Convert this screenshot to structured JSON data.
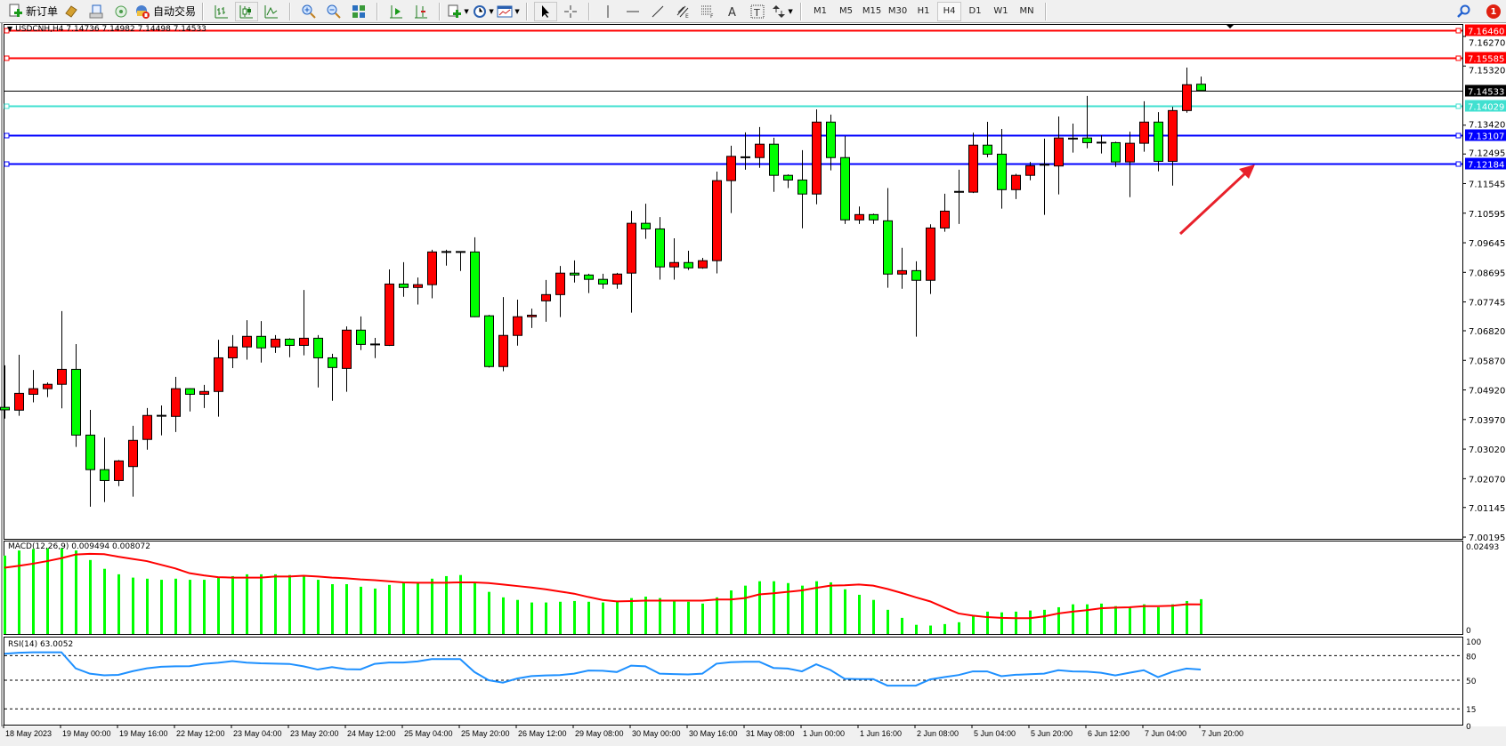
{
  "toolbar": {
    "new_order_label": "新订单",
    "auto_trading_label": "自动交易",
    "timeframes": [
      "M1",
      "M5",
      "M15",
      "M30",
      "H1",
      "H4",
      "D1",
      "W1",
      "MN"
    ],
    "selected_timeframe": "H4",
    "notification_count": "1"
  },
  "legend": {
    "symbol": "USDCNH,H4",
    "open": "7.14736",
    "high": "7.14982",
    "low": "7.14498",
    "close": "7.14533"
  },
  "colors": {
    "bull": "#ff0000",
    "bear": "#00ff00",
    "macd_hist": "#00ff00",
    "macd_signal": "#ff0000",
    "rsi": "#1e90ff",
    "hline_red": "#ff0000",
    "hline_cyan": "#40e0d0",
    "hline_blue": "#0000ff",
    "arrow": "#e8202a"
  },
  "chart_data": [
    {
      "type": "candlestick",
      "symbol": "USDCNH",
      "timeframe": "H4",
      "ylim": [
        7.00139,
        7.16669
      ],
      "price_ticks": [
        "7.16270",
        "7.15320",
        "7.13420",
        "7.12495",
        "7.11545",
        "7.10595",
        "7.09645",
        "7.08695",
        "7.07745",
        "7.06820",
        "7.05870",
        "7.04920",
        "7.03970",
        "7.03020",
        "7.02070",
        "7.01145",
        "7.00195"
      ],
      "time_labels": [
        "18 May 2023",
        "19 May 00:00",
        "19 May 16:00",
        "22 May 12:00",
        "23 May 04:00",
        "23 May 20:00",
        "24 May 12:00",
        "25 May 04:00",
        "25 May 20:00",
        "26 May 12:00",
        "29 May 08:00",
        "30 May 00:00",
        "30 May 16:00",
        "31 May 08:00",
        "1 Jun 00:00",
        "1 Jun 16:00",
        "2 Jun 08:00",
        "5 Jun 04:00",
        "5 Jun 20:00",
        "6 Jun 12:00",
        "7 Jun 04:00",
        "7 Jun 20:00"
      ],
      "ohlc": [
        [
          7.0436,
          7.0571,
          7.04,
          7.0428
        ],
        [
          7.0427,
          7.0605,
          7.0409,
          7.0481
        ],
        [
          7.0478,
          7.0556,
          7.0452,
          7.0496
        ],
        [
          7.0496,
          7.0516,
          7.0469,
          7.051
        ],
        [
          7.051,
          7.0745,
          7.0433,
          7.0558
        ],
        [
          7.0558,
          7.0639,
          7.0309,
          7.0347
        ],
        [
          7.0347,
          7.0428,
          7.0117,
          7.0236
        ],
        [
          7.0236,
          7.0339,
          7.0132,
          7.0201
        ],
        [
          7.0201,
          7.0267,
          7.0183,
          7.0264
        ],
        [
          7.0246,
          7.0377,
          7.0149,
          7.033
        ],
        [
          7.0333,
          7.0434,
          7.03,
          7.041
        ],
        [
          7.0408,
          7.0442,
          7.0346,
          7.0409
        ],
        [
          7.0407,
          7.0534,
          7.0357,
          7.0496
        ],
        [
          7.0496,
          7.0497,
          7.0423,
          7.0478
        ],
        [
          7.0478,
          7.0508,
          7.0434,
          7.0487
        ],
        [
          7.0487,
          7.0653,
          7.0406,
          7.0595
        ],
        [
          7.0595,
          7.0668,
          7.0562,
          7.063
        ],
        [
          7.063,
          7.0716,
          7.0589,
          7.0664
        ],
        [
          7.0664,
          7.0713,
          7.058,
          7.0627
        ],
        [
          7.063,
          7.0668,
          7.0611,
          7.0655
        ],
        [
          7.0655,
          7.0658,
          7.0597,
          7.0635
        ],
        [
          7.0635,
          7.0813,
          7.0603,
          7.0658
        ],
        [
          7.0658,
          7.0668,
          7.05,
          7.0595
        ],
        [
          7.0595,
          7.0608,
          7.0457,
          7.0564
        ],
        [
          7.0561,
          7.0696,
          7.0486,
          7.0684
        ],
        [
          7.0684,
          7.0728,
          7.062,
          7.0638
        ],
        [
          7.0638,
          7.0659,
          7.0594,
          7.0638
        ],
        [
          7.0635,
          7.0879,
          7.0633,
          7.0832
        ],
        [
          7.0832,
          7.0902,
          7.0791,
          7.0821
        ],
        [
          7.0821,
          7.0853,
          7.0766,
          7.083
        ],
        [
          7.083,
          7.0942,
          7.0786,
          7.0935
        ],
        [
          7.0935,
          7.0942,
          7.0891,
          7.0935
        ],
        [
          7.0935,
          7.0935,
          7.0874,
          7.0934
        ],
        [
          7.0935,
          7.0982,
          7.0726,
          7.0727
        ],
        [
          7.073,
          7.0733,
          7.0564,
          7.0567
        ],
        [
          7.0567,
          7.079,
          7.0552,
          7.0667
        ],
        [
          7.0667,
          7.0782,
          7.0634,
          7.0727
        ],
        [
          7.0727,
          7.0753,
          7.0691,
          7.0732
        ],
        [
          7.0778,
          7.0845,
          7.0711,
          7.0798
        ],
        [
          7.0798,
          7.089,
          7.0726,
          7.0867
        ],
        [
          7.0867,
          7.0908,
          7.0837,
          7.0861
        ],
        [
          7.0861,
          7.0865,
          7.0803,
          7.0847
        ],
        [
          7.0847,
          7.0865,
          7.0817,
          7.0832
        ],
        [
          7.0832,
          7.0868,
          7.0817,
          7.0864
        ],
        [
          7.0867,
          7.1067,
          7.074,
          7.1027
        ],
        [
          7.1027,
          7.109,
          7.0977,
          7.1009
        ],
        [
          7.1009,
          7.1047,
          7.0846,
          7.0887
        ],
        [
          7.0887,
          7.0979,
          7.0846,
          7.0901
        ],
        [
          7.0901,
          7.0939,
          7.0877,
          7.0884
        ],
        [
          7.0884,
          7.0916,
          7.0881,
          7.0907
        ],
        [
          7.0907,
          7.1193,
          7.0866,
          7.1164
        ],
        [
          7.1164,
          7.1276,
          7.106,
          7.1242
        ],
        [
          7.1239,
          7.1319,
          7.1199,
          7.1239
        ],
        [
          7.1238,
          7.1336,
          7.1205,
          7.1281
        ],
        [
          7.1281,
          7.1302,
          7.1128,
          7.1181
        ],
        [
          7.1181,
          7.1184,
          7.114,
          7.1166
        ],
        [
          7.1166,
          7.1262,
          7.1011,
          7.1121
        ],
        [
          7.1121,
          7.1393,
          7.1088,
          7.1352
        ],
        [
          7.1352,
          7.1376,
          7.1197,
          7.1238
        ],
        [
          7.1238,
          7.1307,
          7.1025,
          7.1038
        ],
        [
          7.1038,
          7.1081,
          7.1025,
          7.1055
        ],
        [
          7.1055,
          7.1058,
          7.1025,
          7.1038
        ],
        [
          7.1035,
          7.114,
          7.082,
          7.0864
        ],
        [
          7.0864,
          7.0948,
          7.0817,
          7.0875
        ],
        [
          7.0875,
          7.0905,
          7.0663,
          7.0844
        ],
        [
          7.0844,
          7.1024,
          7.08,
          7.1012
        ],
        [
          7.1012,
          7.1122,
          7.1,
          7.1066
        ],
        [
          7.1128,
          7.1199,
          7.1025,
          7.1128
        ],
        [
          7.1127,
          7.1318,
          7.1124,
          7.1278
        ],
        [
          7.1278,
          7.1353,
          7.1239,
          7.1249
        ],
        [
          7.1249,
          7.133,
          7.1074,
          7.1135
        ],
        [
          7.1135,
          7.1186,
          7.1105,
          7.1181
        ],
        [
          7.1181,
          7.1224,
          7.1165,
          7.1212
        ],
        [
          7.1215,
          7.1299,
          7.1054,
          7.1215
        ],
        [
          7.1211,
          7.137,
          7.112,
          7.1301
        ],
        [
          7.1299,
          7.1347,
          7.1254,
          7.1299
        ],
        [
          7.1301,
          7.1436,
          7.1268,
          7.1286
        ],
        [
          7.1286,
          7.131,
          7.1251,
          7.1286
        ],
        [
          7.1286,
          7.1289,
          7.1208,
          7.1224
        ],
        [
          7.1224,
          7.1321,
          7.1111,
          7.1284
        ],
        [
          7.1284,
          7.1419,
          7.1257,
          7.1352
        ],
        [
          7.1352,
          7.1384,
          7.1194,
          7.1226
        ],
        [
          7.1226,
          7.1401,
          7.1148,
          7.1389
        ],
        [
          7.1389,
          7.1527,
          7.1382,
          7.1472
        ],
        [
          7.14736,
          7.14982,
          7.14498,
          7.14533
        ]
      ],
      "horizontal_lines": [
        {
          "price": "7.16460",
          "color": "#ff0000"
        },
        {
          "price": "7.15585",
          "color": "#ff0000"
        },
        {
          "price": "7.14533",
          "color": "#000000"
        },
        {
          "price": "7.14029",
          "color": "#40e0d0"
        },
        {
          "price": "7.13107",
          "color": "#0000ff"
        },
        {
          "price": "7.12184",
          "color": "#0000ff"
        }
      ]
    },
    {
      "type": "bar+line",
      "title": "MACD(12,26,9) 0.009494 0.008072",
      "ylim": [
        0,
        0.0255
      ],
      "axis_labels": [
        "0.02493",
        "0"
      ],
      "histogram": [
        0.0214,
        0.0228,
        0.0232,
        0.0234,
        0.0234,
        0.0228,
        0.0202,
        0.0178,
        0.0163,
        0.0154,
        0.0151,
        0.0148,
        0.0151,
        0.0148,
        0.0148,
        0.0153,
        0.0158,
        0.0163,
        0.0163,
        0.0163,
        0.0161,
        0.0158,
        0.0148,
        0.0136,
        0.0136,
        0.0129,
        0.0124,
        0.0134,
        0.0139,
        0.0139,
        0.0151,
        0.0158,
        0.0161,
        0.0139,
        0.0115,
        0.01,
        0.0093,
        0.0086,
        0.0086,
        0.0088,
        0.009,
        0.0088,
        0.0086,
        0.0088,
        0.0098,
        0.0102,
        0.0098,
        0.009,
        0.0088,
        0.0083,
        0.01,
        0.0119,
        0.0132,
        0.0144,
        0.0144,
        0.0139,
        0.0132,
        0.0144,
        0.0141,
        0.0122,
        0.0107,
        0.0093,
        0.0066,
        0.0044,
        0.0025,
        0.0023,
        0.0027,
        0.0032,
        0.0049,
        0.0061,
        0.0059,
        0.0061,
        0.0064,
        0.0066,
        0.0073,
        0.0081,
        0.0081,
        0.0083,
        0.0076,
        0.0073,
        0.0081,
        0.0073,
        0.0081,
        0.009,
        0.009494
      ],
      "signal": [
        0.0181,
        0.0186,
        0.0192,
        0.0199,
        0.0207,
        0.0217,
        0.0219,
        0.0218,
        0.0211,
        0.0205,
        0.0199,
        0.0189,
        0.0179,
        0.0166,
        0.016,
        0.0155,
        0.0154,
        0.0154,
        0.0154,
        0.0157,
        0.0157,
        0.0159,
        0.0157,
        0.0154,
        0.0152,
        0.0149,
        0.0147,
        0.0144,
        0.0141,
        0.014,
        0.014,
        0.014,
        0.0141,
        0.0141,
        0.0139,
        0.0135,
        0.0131,
        0.0127,
        0.0122,
        0.0116,
        0.011,
        0.0101,
        0.0093,
        0.0089,
        0.009,
        0.0091,
        0.0091,
        0.0091,
        0.0091,
        0.0091,
        0.0094,
        0.0094,
        0.0098,
        0.0108,
        0.0111,
        0.0115,
        0.0119,
        0.0126,
        0.0132,
        0.0133,
        0.0135,
        0.0132,
        0.0123,
        0.0112,
        0.01,
        0.0089,
        0.0072,
        0.0056,
        0.005,
        0.0046,
        0.0044,
        0.0043,
        0.0043,
        0.0048,
        0.0056,
        0.0061,
        0.0065,
        0.007,
        0.0072,
        0.0073,
        0.0076,
        0.0076,
        0.0077,
        0.0081,
        0.008072
      ]
    },
    {
      "type": "line",
      "title": "RSI(14) 63.0052",
      "ylim": [
        0,
        100
      ],
      "levels": [
        80,
        50,
        15
      ],
      "axis_labels": [
        "100",
        "80",
        "50",
        "15",
        "0"
      ],
      "values": [
        82.4,
        83.5,
        84.1,
        84.1,
        84.1,
        64.5,
        58,
        56,
        56.5,
        61,
        64.5,
        66.5,
        67,
        67.1,
        70,
        71.3,
        73.3,
        71.5,
        70.6,
        70.3,
        69.9,
        67,
        63,
        66,
        63.5,
        63.2,
        70,
        71.6,
        71.6,
        73,
        75.8,
        75.8,
        75.8,
        60,
        50,
        47,
        52,
        55,
        55.8,
        56.3,
        58,
        61.8,
        61.5,
        60,
        67.8,
        67,
        58,
        57.5,
        57,
        58,
        70.2,
        72,
        72.6,
        72.6,
        65,
        64.3,
        60.8,
        69.5,
        62.5,
        51.7,
        51.4,
        51.4,
        43.4,
        43.4,
        43.4,
        51,
        53.8,
        56.3,
        60.8,
        60.8,
        54.9,
        56.6,
        57.3,
        58,
        62.2,
        60.8,
        60.5,
        59.1,
        55.9,
        59.1,
        62.2,
        53.8,
        60.1,
        64.3,
        63.0052
      ]
    }
  ]
}
